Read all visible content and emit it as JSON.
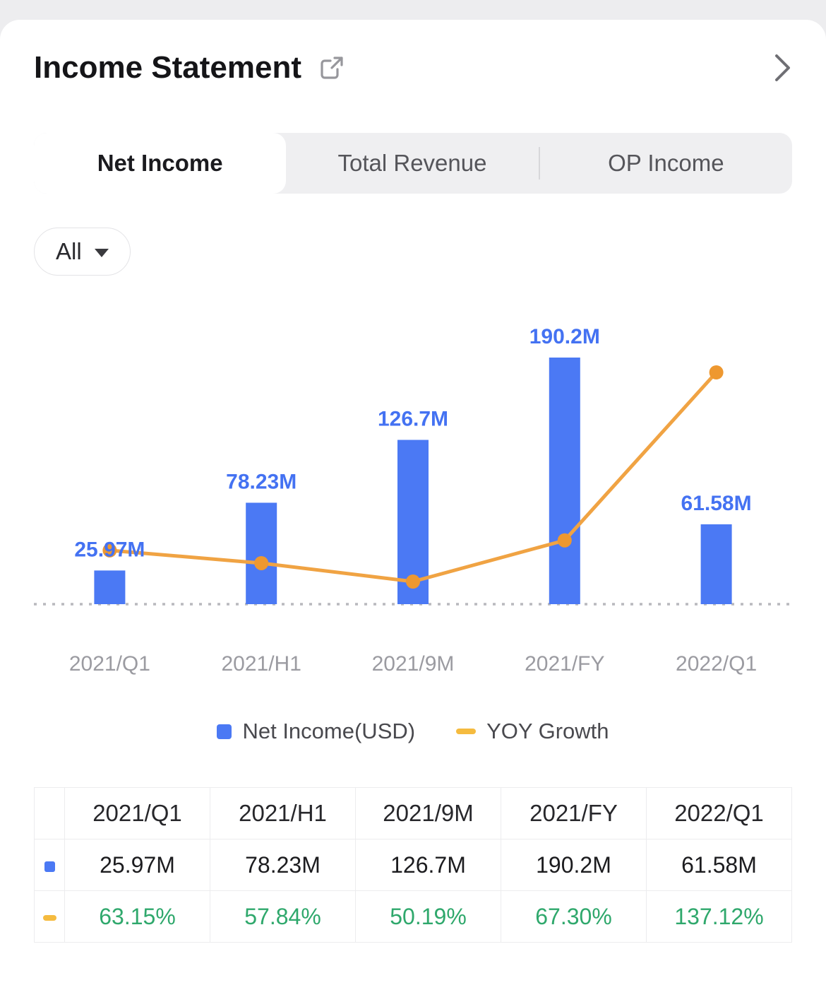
{
  "header": {
    "title": "Income Statement"
  },
  "tabs": [
    {
      "label": "Net Income",
      "selected": true
    },
    {
      "label": "Total Revenue",
      "selected": false
    },
    {
      "label": "OP Income",
      "selected": false
    }
  ],
  "filter": {
    "label": "All"
  },
  "chart_data": {
    "type": "bar",
    "categories": [
      "2021/Q1",
      "2021/H1",
      "2021/9M",
      "2021/FY",
      "2022/Q1"
    ],
    "series": [
      {
        "name": "Net Income(USD)",
        "type": "bar",
        "values": [
          25.97,
          78.23,
          126.7,
          190.2,
          61.58
        ],
        "values_label": [
          "25.97M",
          "78.23M",
          "126.7M",
          "190.2M",
          "61.58M"
        ],
        "unit": "M",
        "color": "#4b79f4",
        "label_color": "#4472f2"
      },
      {
        "name": "YOY Growth",
        "type": "line",
        "values": [
          63.15,
          57.84,
          50.19,
          67.3,
          137.12
        ],
        "values_label": [
          "63.15%",
          "57.84%",
          "50.19%",
          "67.30%",
          "137.12%"
        ],
        "unit": "%",
        "color": "#f0a343",
        "dot_color": "#ee9830"
      }
    ],
    "baseline": "dashed",
    "axis_label_color": "#9b9ba1",
    "legend_position": "bottom",
    "grid": false
  },
  "legend": [
    {
      "label": "Net Income(USD)",
      "marker": "square",
      "color": "#4b79f4"
    },
    {
      "label": "YOY Growth",
      "marker": "dash",
      "color": "#f5bb3f"
    }
  ],
  "table": {
    "columns": [
      "",
      "2021/Q1",
      "2021/H1",
      "2021/9M",
      "2021/FY",
      "2022/Q1"
    ],
    "rows": [
      {
        "marker": "square",
        "color": "#4b79f4",
        "text_color": "#1c1c1f",
        "values": [
          "25.97M",
          "78.23M",
          "126.7M",
          "190.2M",
          "61.58M"
        ]
      },
      {
        "marker": "dash",
        "color": "#f5bb3f",
        "text_color": "#2fa86c",
        "values": [
          "63.15%",
          "57.84%",
          "50.19%",
          "67.30%",
          "137.12%"
        ]
      }
    ]
  }
}
